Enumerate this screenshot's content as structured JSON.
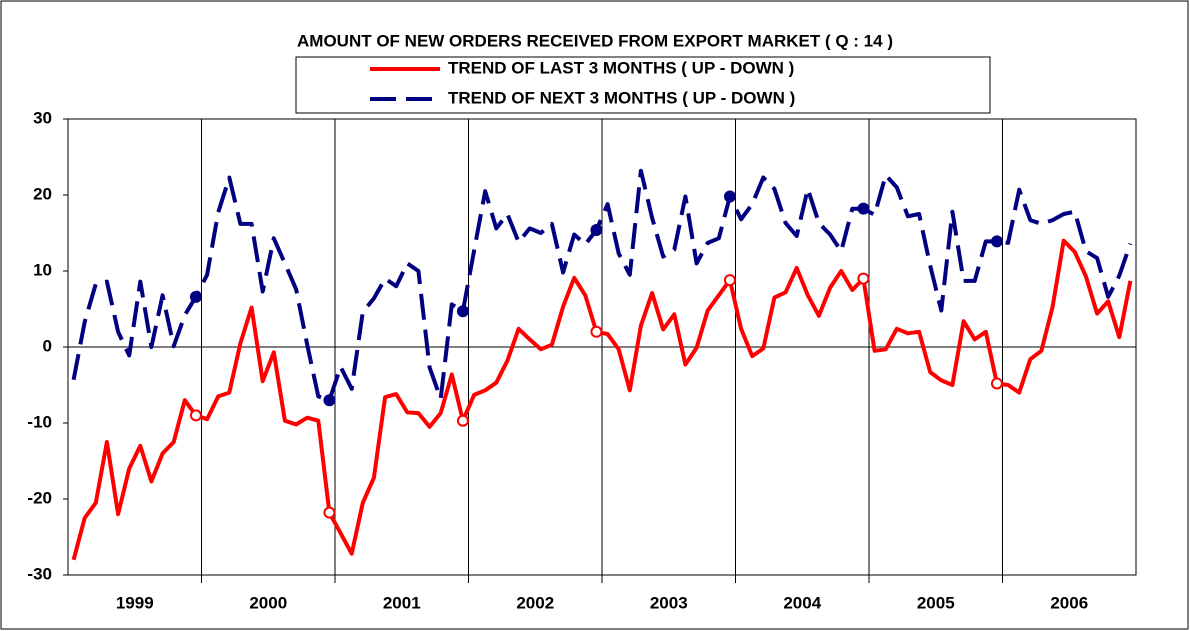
{
  "chart_data": {
    "type": "line",
    "title": "AMOUNT OF NEW ORDERS RECEIVED FROM EXPORT MARKET ( Q : 14 )",
    "categories": [
      null,
      null,
      null,
      null,
      null,
      "1999",
      null,
      null,
      null,
      null,
      null,
      null,
      null,
      null,
      null,
      null,
      null,
      "2000",
      null,
      null,
      null,
      null,
      null,
      null,
      null,
      null,
      null,
      null,
      null,
      "2001",
      null,
      null,
      null,
      null,
      null,
      null,
      null,
      null,
      null,
      null,
      null,
      "2002",
      null,
      null,
      null,
      null,
      null,
      null,
      null,
      null,
      null,
      null,
      null,
      "2003",
      null,
      null,
      null,
      null,
      null,
      null,
      null,
      null,
      null,
      null,
      null,
      "2004",
      null,
      null,
      null,
      null,
      null,
      null,
      null,
      null,
      null,
      null,
      null,
      "2005",
      null,
      null,
      null,
      null,
      null,
      null,
      null,
      null,
      null,
      null,
      null,
      "2006",
      null,
      null,
      null,
      null,
      null,
      null
    ],
    "series": [
      {
        "name": "TREND OF LAST 3 MONTHS ( UP - DOWN  )",
        "color": "#ff0000",
        "dash": false,
        "values": [
          -28,
          -22.5,
          -20.5,
          -12.5,
          -22,
          -16,
          -13,
          -17.7,
          -14,
          -12.5,
          -7,
          -9,
          -9.5,
          -6.5,
          -6,
          0.5,
          5.2,
          -4.5,
          -0.7,
          -9.7,
          -10.2,
          -9.3,
          -9.7,
          -21.8,
          -24.5,
          -27.2,
          -20.5,
          -17.2,
          -6.6,
          -6.2,
          -8.6,
          -8.7,
          -10.5,
          -8.7,
          -3.6,
          -9.7,
          -6.3,
          -5.7,
          -4.7,
          -1.8,
          2.4,
          1,
          -0.3,
          0.3,
          5.3,
          9.1,
          6.8,
          2,
          1.7,
          -0.3,
          -5.7,
          2.8,
          7.1,
          2.3,
          4.3,
          -2.3,
          -0.1,
          4.8,
          6.8,
          8.8,
          2.4,
          -1.2,
          -0.2,
          6.5,
          7.2,
          10.4,
          6.8,
          4.1,
          7.8,
          10,
          7.5,
          9,
          -0.5,
          -0.3,
          2.4,
          1.8,
          2,
          -3.3,
          -4.4,
          -5,
          3.4,
          1,
          2,
          -4.8,
          -5,
          -6,
          -1.6,
          -0.5,
          5.3,
          14,
          12.5,
          9.3,
          4.4,
          6,
          1.3,
          8.7
        ]
      },
      {
        "name": "TREND OF NEXT 3 MONTHS ( UP - DOWN )",
        "color": "#000080",
        "dash": true,
        "values": [
          -4.3,
          3.3,
          8.3,
          8.6,
          2,
          -1.1,
          8.6,
          0,
          6.8,
          0.1,
          4.2,
          6.6,
          9.5,
          17.7,
          22.3,
          16.2,
          16.2,
          7.3,
          14.3,
          11,
          7.6,
          0.3,
          -6.5,
          -7,
          -2.6,
          -5.5,
          4.6,
          6.4,
          9,
          8,
          11,
          10,
          -2.7,
          -6.8,
          5.6,
          4.7,
          12.7,
          20.5,
          15.6,
          17.5,
          13.8,
          15.6,
          15,
          16.2,
          9.8,
          14.8,
          13.5,
          15.4,
          18.8,
          12.3,
          9.5,
          23.2,
          17,
          11.9,
          12.8,
          19.8,
          11,
          13.7,
          14.3,
          19.8,
          16.8,
          18.8,
          22.3,
          20.8,
          16.3,
          14.6,
          20.8,
          16.3,
          14.8,
          12.6,
          18.2,
          18.2,
          17.4,
          22.6,
          21,
          17.2,
          17.5,
          10.7,
          4.8,
          17.8,
          8.7,
          8.7,
          13.9,
          13.9,
          13.7,
          20.7,
          16.7,
          16.2,
          16.7,
          17.5,
          17.8,
          12.6,
          11.7,
          6.6,
          9.4,
          13.6
        ]
      }
    ],
    "ylim": [
      -30,
      30
    ],
    "yticks": [
      -30,
      -20,
      -10,
      0,
      10,
      20,
      30
    ],
    "legend": "top"
  }
}
